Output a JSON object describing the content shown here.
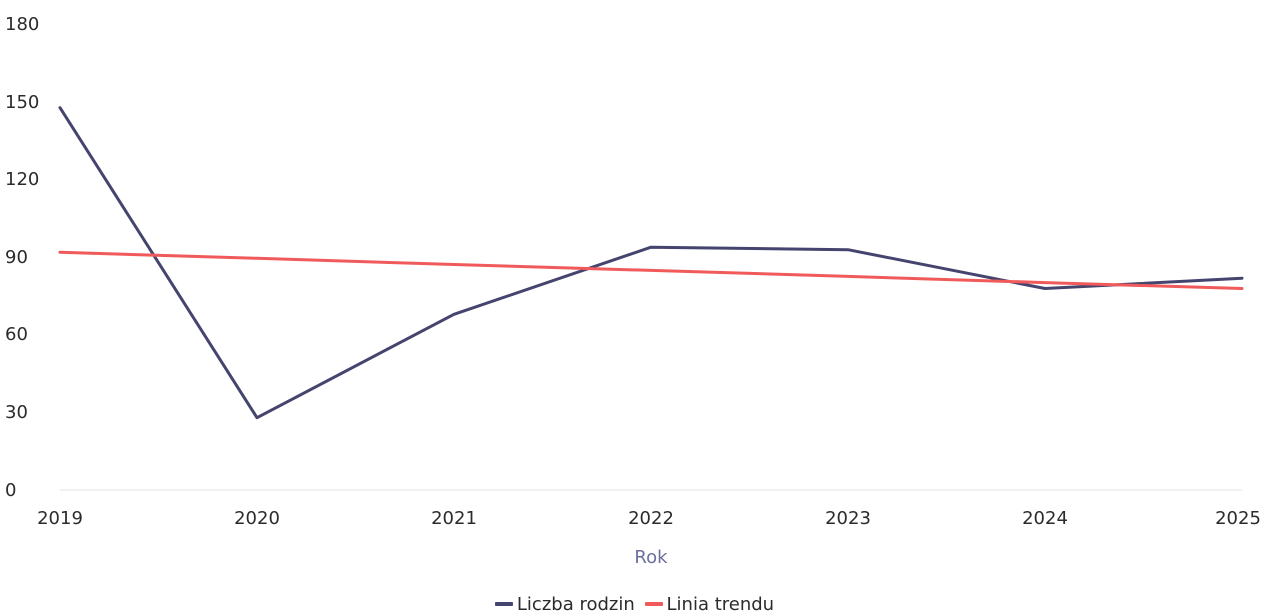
{
  "chart_data": {
    "type": "line",
    "xlabel": "Rok",
    "ylabel": "",
    "x": [
      "2019",
      "2020",
      "2021",
      "2022",
      "2023",
      "2024",
      "2025"
    ],
    "y_ticks": [
      "0",
      "30",
      "60",
      "90",
      "120",
      "150",
      "180"
    ],
    "ylim": [
      0,
      180
    ],
    "grid": false,
    "legend_position": "bottom-center",
    "series": [
      {
        "name": "Liczba rodzin",
        "color": "#44446e",
        "values": [
          148,
          28,
          68,
          94,
          93,
          78,
          82
        ]
      },
      {
        "name": "Linia trendu",
        "color": "#f05a5a",
        "values": [
          92,
          89.7,
          87.3,
          85,
          82.7,
          80.3,
          78
        ]
      }
    ]
  }
}
